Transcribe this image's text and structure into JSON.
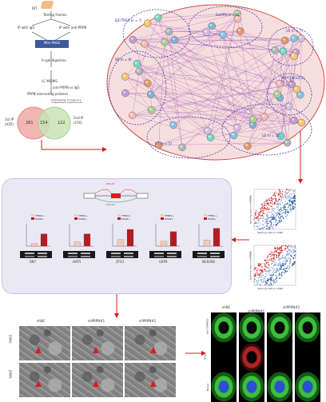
{
  "workflow": {
    "steps": [
      "DIT",
      "Testing frames",
      "IP with IgG",
      "IP with anti-PRPN",
      "Mini-PAGE",
      "In-gel digestion",
      "LC-MS/MS",
      "anti-PRPN vs IgG",
      "PRPN interacting proteins"
    ],
    "note": "Overlapping: biological 2 independent experiments",
    "venn": {
      "left_label": "1st IP",
      "left_count_label": "(435)",
      "left_only": "281",
      "overlap": "154",
      "right_only": "122",
      "right_label": "2nd IP",
      "right_count_label": "(276)"
    }
  },
  "network": {
    "clusters": [
      {
        "label": "EJC/TREX (n = 7)"
      },
      {
        "label": "SmPPS (n = 6)"
      },
      {
        "label": "U5 (n = 7)"
      },
      {
        "label": "SR (n = 8)"
      },
      {
        "label": "PRPF19/CDC5L (n = 7)"
      },
      {
        "label": "U2 (n = 10)"
      },
      {
        "label": "U1 (n = 5)"
      }
    ]
  },
  "scatter": {
    "top": {
      "xlabel": "Splicing ratio in shNC",
      "ylabel": "Splicing ratio in shPRPN"
    },
    "bottom": {
      "xlabel": "Splicing ratio in shNC",
      "ylabel": "Splicing ratio in shPRPN"
    },
    "colors": {
      "up": "#d02a2a",
      "neutral": "#8aa9d6",
      "down": "#2e5d9e"
    }
  },
  "splicing_panel": {
    "diagram": {
      "labels": [
        "EOGA5",
        "EOGA6"
      ]
    },
    "legend": {
      "a": "TFEB1+",
      "b": "PSGN+"
    },
    "genes": [
      {
        "name": "SN7",
        "values": [
          0.12,
          0.55
        ]
      },
      {
        "name": "HAT5",
        "values": [
          0.2,
          0.55
        ]
      },
      {
        "name": "ZFX1",
        "values": [
          0.3,
          0.75
        ]
      },
      {
        "name": "USP9",
        "values": [
          0.22,
          0.65
        ]
      },
      {
        "name": "NC6008",
        "values": [
          0.28,
          0.8
        ]
      }
    ],
    "series_colors": [
      "#f2c9b8",
      "#b31d22"
    ]
  },
  "em": {
    "columns": [
      "shNC",
      "shPRPN#1",
      "shPRPN#2"
    ],
    "rows": [
      "Islet1",
      "Islet2"
    ]
  },
  "if_panel": {
    "groups": [
      "shNC",
      "shPRPN#1",
      "shPRPN#2"
    ],
    "rows": [
      "anti-TOMM20",
      "Mito",
      "Merge"
    ]
  },
  "colors": {
    "red_arrow": "#d81e1e",
    "pink_bg": "#f7dede",
    "lavender": "#ebe8f5",
    "flow_blue": "#3e5a9a",
    "venn_red": "#e58b86",
    "venn_green": "#a9d18e"
  }
}
